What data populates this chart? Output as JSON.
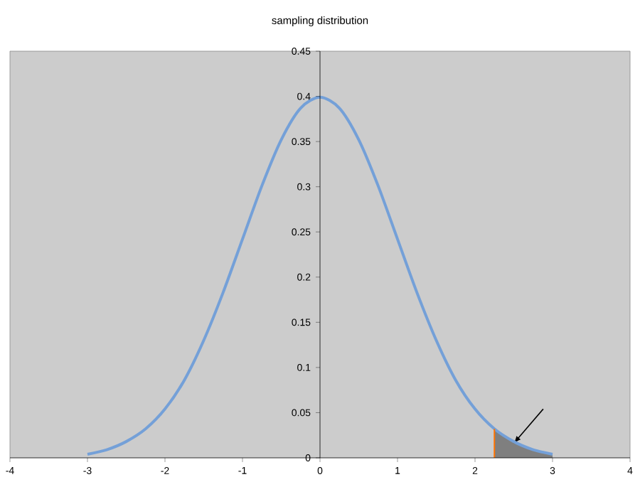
{
  "chart_data": {
    "type": "line",
    "title": "sampling distribution",
    "xlim": [
      -4,
      4
    ],
    "xticks": [
      -4,
      -3,
      -2,
      -1,
      0,
      1,
      2,
      3,
      4
    ],
    "ylim": [
      0,
      0.45
    ],
    "yticks": [
      0,
      0.05,
      0.1,
      0.15,
      0.2,
      0.25,
      0.3,
      0.35,
      0.4,
      0.45
    ],
    "grid": false,
    "marker": "none",
    "line_style": "solid",
    "series": [
      {
        "color": "#74a0d8",
        "x": [
          -3,
          -2.75,
          -2.5,
          -2.25,
          -2,
          -1.75,
          -1.5,
          -1.25,
          -1,
          -0.75,
          -0.5,
          -0.25,
          0,
          0.25,
          0.5,
          0.75,
          1,
          1.25,
          1.5,
          1.75,
          2,
          2.25,
          2.5,
          2.75,
          3
        ],
        "values": [
          0.004,
          0.009,
          0.018,
          0.032,
          0.054,
          0.086,
          0.13,
          0.183,
          0.242,
          0.301,
          0.352,
          0.387,
          0.399,
          0.387,
          0.352,
          0.301,
          0.242,
          0.183,
          0.13,
          0.086,
          0.054,
          0.032,
          0.018,
          0.009,
          0.004
        ]
      },
      {
        "type": "area",
        "color": "#7f7f7f",
        "x": [
          2.25,
          2.5,
          2.75,
          3
        ],
        "values": [
          0.032,
          0.018,
          0.009,
          0.004
        ]
      },
      {
        "color": "#ff7300",
        "x": [
          2.25,
          2.25
        ],
        "values": [
          0,
          0.032
        ]
      }
    ]
  }
}
